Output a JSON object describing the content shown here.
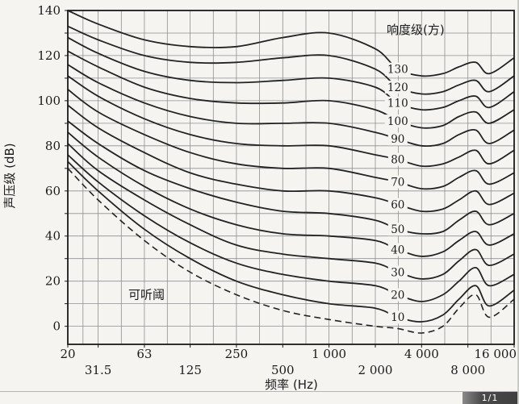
{
  "page": {
    "badge": "1/1"
  },
  "colors": {
    "background": "#f5f4f1",
    "curve": "#232323",
    "grid": "#8f8f8f",
    "frame": "#1a1a1a",
    "text": "#1b1b1b",
    "badge_bg": "#4a4a4a",
    "badge_text": "#ffffff"
  },
  "chart_data": {
    "type": "line",
    "x_scale": "log",
    "xlabel": "频率 (Hz)",
    "ylabel": "声压级 (dB)",
    "legend_title": "响度级(方)",
    "xlim": [
      20,
      16000
    ],
    "ylim": [
      -8,
      140
    ],
    "grid": true,
    "x_tick_values": [
      20,
      31.5,
      63,
      125,
      250,
      500,
      1000,
      2000,
      4000,
      8000,
      16000
    ],
    "x_tick_labels": [
      "20",
      "31.5",
      "63",
      "125",
      "250",
      "500",
      "1 000",
      "2 000",
      "4 000",
      "8 000",
      "16 000"
    ],
    "y_tick_values": [
      0,
      20,
      40,
      60,
      80,
      100,
      120,
      140
    ],
    "y_grid_step": 10,
    "frequencies": [
      20,
      31.5,
      63,
      125,
      250,
      500,
      1000,
      2000,
      2800,
      4000,
      5500,
      7000,
      9000,
      11000,
      16000
    ],
    "label_frequency": 2800,
    "series": [
      {
        "name": "130",
        "values": [
          140,
          134,
          127,
          124,
          124,
          128,
          130,
          123,
          114,
          111,
          112,
          115,
          117,
          112,
          119
        ]
      },
      {
        "name": "120",
        "values": [
          133,
          127,
          120,
          117,
          117,
          119,
          120,
          114,
          106,
          103,
          104,
          107,
          109,
          104,
          111
        ]
      },
      {
        "name": "110",
        "values": [
          128,
          121,
          113,
          109,
          108,
          109,
          110,
          106,
          99,
          96,
          97,
          100,
          102,
          97,
          104
        ]
      },
      {
        "name": "100",
        "values": [
          122,
          115,
          106,
          101,
          99,
          99,
          100,
          96,
          91,
          88,
          89,
          93,
          95,
          90,
          96
        ]
      },
      {
        "name": "90",
        "values": [
          116,
          108,
          99,
          93,
          90,
          90,
          90,
          86,
          83,
          80,
          81,
          85,
          87,
          81,
          87
        ]
      },
      {
        "name": "80",
        "values": [
          111,
          102,
          92,
          85,
          81,
          80,
          80,
          76,
          74,
          71,
          72,
          75,
          78,
          72,
          78
        ]
      },
      {
        "name": "70",
        "values": [
          105,
          95,
          85,
          77,
          72,
          70,
          70,
          66,
          64,
          61,
          62,
          66,
          69,
          63,
          68
        ]
      },
      {
        "name": "60",
        "values": [
          98,
          88,
          77,
          68,
          63,
          60,
          60,
          57,
          54,
          51,
          52,
          56,
          60,
          54,
          59
        ]
      },
      {
        "name": "50",
        "values": [
          91,
          81,
          69,
          61,
          55,
          51,
          50,
          47,
          43,
          41,
          42,
          47,
          51,
          45,
          50
        ]
      },
      {
        "name": "40",
        "values": [
          86,
          75,
          62,
          52,
          45,
          41,
          40,
          38,
          34,
          31,
          33,
          38,
          42,
          36,
          41
        ]
      },
      {
        "name": "30",
        "values": [
          81,
          69,
          56,
          45,
          36,
          32,
          30,
          28,
          24,
          21,
          23,
          29,
          34,
          27,
          32
        ]
      },
      {
        "name": "20",
        "values": [
          76,
          64,
          49,
          37,
          28,
          23,
          20,
          18,
          14,
          11,
          14,
          20,
          26,
          18,
          23
        ]
      },
      {
        "name": "10",
        "values": [
          73,
          60,
          43,
          30,
          20,
          14,
          10,
          8,
          4,
          2,
          5,
          12,
          18,
          9,
          16
        ]
      }
    ],
    "threshold": {
      "name": "可听阈",
      "dashed": true,
      "values": [
        70,
        56,
        38,
        24,
        14,
        7,
        3,
        0,
        -1,
        -3,
        0,
        8,
        14,
        4,
        12
      ],
      "label_at": {
        "frequency": 65,
        "db": 14
      }
    }
  }
}
